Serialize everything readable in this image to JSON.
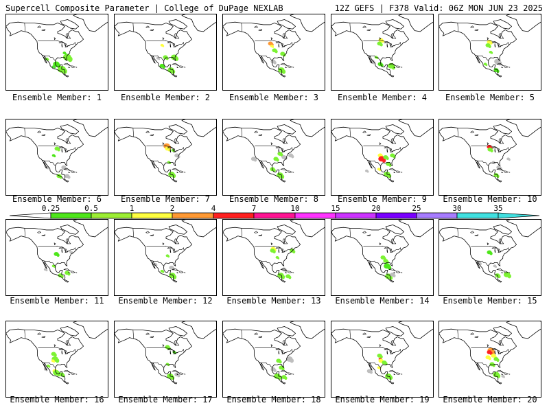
{
  "header": {
    "left": "Supercell Composite Parameter | College of DuPage NEXLAB",
    "right": "12Z GEFS | F378 Valid: 06Z MON JUN 23 2025"
  },
  "panels": [
    {
      "label": "Ensemble Member: 1",
      "blobs": [
        [
          -80,
          30,
          5,
          "#7cf233"
        ],
        [
          -96,
          22,
          4,
          "#4ee61a"
        ],
        [
          -88,
          16,
          5,
          "#7cf233"
        ],
        [
          -100,
          19,
          2,
          "#50e030"
        ],
        [
          -110,
          28,
          2,
          "#7cf233"
        ],
        [
          -84,
          35,
          2,
          "#4ee61a"
        ]
      ]
    },
    {
      "label": "Ensemble Member: 2",
      "blobs": [
        [
          -100,
          44,
          2,
          "#ffff40"
        ],
        [
          -95,
          30,
          3,
          "#7cf233"
        ],
        [
          -82,
          30,
          4,
          "#7cf233"
        ],
        [
          -100,
          20,
          3,
          "#4ee61a"
        ],
        [
          -87,
          15,
          4,
          "#7cf233"
        ],
        [
          -106,
          29,
          2,
          "#bebebe"
        ]
      ]
    },
    {
      "label": "Ensemble Member: 3",
      "blobs": [
        [
          -100,
          46,
          3,
          "#ff9933"
        ],
        [
          -98,
          43,
          2,
          "#ffff40"
        ],
        [
          -94,
          38,
          3,
          "#7cf233"
        ],
        [
          -82,
          34,
          3,
          "#7cf233"
        ],
        [
          -96,
          25,
          3,
          "#bebebe"
        ],
        [
          -84,
          15,
          4,
          "#7cf233"
        ]
      ]
    },
    {
      "label": "Ensemble Member: 4",
      "blobs": [
        [
          -97,
          50,
          3,
          "#ffff40"
        ],
        [
          -99,
          46,
          3,
          "#7cf233"
        ],
        [
          -104,
          30,
          2,
          "#7cf233"
        ],
        [
          -98,
          22,
          3,
          "#4ee61a"
        ],
        [
          -82,
          20,
          4,
          "#7cf233"
        ],
        [
          -110,
          25,
          3,
          "#bebebe"
        ]
      ]
    },
    {
      "label": "Ensemble Member: 5",
      "blobs": [
        [
          -96,
          48,
          3,
          "#ffff40"
        ],
        [
          -98,
          44,
          3,
          "#7cf233"
        ],
        [
          -94,
          36,
          2,
          "#7cf233"
        ],
        [
          -84,
          25,
          4,
          "#bebebe"
        ],
        [
          -86,
          15,
          3,
          "#4ee61a"
        ],
        [
          -102,
          22,
          2,
          "#7cf233"
        ]
      ]
    },
    {
      "label": "Ensemble Member: 6",
      "blobs": [
        [
          -95,
          46,
          3,
          "#7cf233"
        ],
        [
          -100,
          38,
          2,
          "#4ee61a"
        ],
        [
          -85,
          24,
          3,
          "#bebebe"
        ],
        [
          -92,
          14,
          3,
          "#7cf233"
        ],
        [
          -80,
          14,
          3,
          "#bebebe"
        ],
        [
          -110,
          24,
          2,
          "#bebebe"
        ]
      ]
    },
    {
      "label": "Ensemble Member: 7",
      "blobs": [
        [
          -93,
          49,
          4,
          "#ff9933"
        ],
        [
          -92,
          46,
          3,
          "#ffff40"
        ],
        [
          -84,
          44,
          2,
          "#7cf233"
        ],
        [
          -90,
          30,
          2,
          "#7cf233"
        ],
        [
          -86,
          16,
          4,
          "#7cf233"
        ],
        [
          -78,
          38,
          3,
          "#bebebe"
        ]
      ]
    },
    {
      "label": "Ensemble Member: 8",
      "blobs": [
        [
          -86,
          40,
          3,
          "#7cf233"
        ],
        [
          -92,
          34,
          3,
          "#7cf233"
        ],
        [
          -80,
          36,
          3,
          "#bebebe"
        ],
        [
          -97,
          22,
          3,
          "#7cf233"
        ],
        [
          -86,
          15,
          4,
          "#7cf233"
        ],
        [
          -70,
          38,
          3,
          "#bebebe"
        ],
        [
          -125,
          34,
          3,
          "#bebebe"
        ]
      ]
    },
    {
      "label": "Ensemble Member: 9",
      "blobs": [
        [
          -98,
          38,
          3,
          "#ffff40"
        ],
        [
          -96,
          34,
          4,
          "#ff2020"
        ],
        [
          -90,
          36,
          3,
          "#7cf233"
        ],
        [
          -80,
          38,
          3,
          "#7cf233"
        ],
        [
          -86,
          28,
          3,
          "#7cf233"
        ],
        [
          -100,
          22,
          2,
          "#ffff40"
        ],
        [
          -88,
          16,
          4,
          "#7cf233"
        ],
        [
          -118,
          20,
          2,
          "#bebebe"
        ]
      ]
    },
    {
      "label": "Ensemble Member: 10",
      "blobs": [
        [
          -96,
          48,
          3,
          "#ff2020"
        ],
        [
          -95,
          45,
          3,
          "#7cf233"
        ],
        [
          -90,
          30,
          2,
          "#bebebe"
        ],
        [
          -82,
          24,
          3,
          "#bebebe"
        ],
        [
          -86,
          15,
          3,
          "#7cf233"
        ],
        [
          -68,
          34,
          2,
          "#bebebe"
        ]
      ]
    },
    {
      "label": "Ensemble Member: 11",
      "blobs": [
        [
          -96,
          40,
          3,
          "#4ee61a"
        ],
        [
          -100,
          26,
          2,
          "#7cf233"
        ],
        [
          -90,
          15,
          3,
          "#7cf233"
        ],
        [
          -80,
          18,
          3,
          "#7cf233"
        ],
        [
          -74,
          42,
          2,
          "#bebebe"
        ],
        [
          -112,
          22,
          2,
          "#bebebe"
        ]
      ]
    },
    {
      "label": "Ensemble Member: 12",
      "blobs": [
        [
          -92,
          38,
          2,
          "#7cf233"
        ],
        [
          -86,
          24,
          3,
          "#bebebe"
        ],
        [
          -85,
          15,
          4,
          "#7cf233"
        ],
        [
          -100,
          20,
          2,
          "#7cf233"
        ],
        [
          -110,
          28,
          2,
          "#bebebe"
        ]
      ]
    },
    {
      "label": "Ensemble Member: 13",
      "blobs": [
        [
          -96,
          46,
          3,
          "#ffff40"
        ],
        [
          -97,
          44,
          3,
          "#7cf233"
        ],
        [
          -90,
          36,
          2,
          "#7cf233"
        ],
        [
          -68,
          44,
          3,
          "#7cf233"
        ],
        [
          -80,
          22,
          3,
          "#bebebe"
        ],
        [
          -85,
          15,
          4,
          "#7cf233"
        ],
        [
          -74,
          14,
          3,
          "#7cf233"
        ]
      ]
    },
    {
      "label": "Ensemble Member: 14",
      "blobs": [
        [
          -94,
          36,
          3,
          "#7cf233"
        ],
        [
          -90,
          32,
          3,
          "#7cf233"
        ],
        [
          -88,
          26,
          4,
          "#4ee61a"
        ],
        [
          -86,
          14,
          4,
          "#7cf233"
        ],
        [
          -80,
          16,
          3,
          "#bebebe"
        ]
      ]
    },
    {
      "label": "Ensemble Member: 15",
      "blobs": [
        [
          -96,
          42,
          3,
          "#4ee61a"
        ],
        [
          -88,
          26,
          2,
          "#bebebe"
        ],
        [
          -84,
          15,
          3,
          "#7cf233"
        ],
        [
          -70,
          16,
          4,
          "#7cf233"
        ],
        [
          -112,
          30,
          3,
          "#bebebe"
        ]
      ]
    },
    {
      "label": "Ensemble Member: 16",
      "blobs": [
        [
          -100,
          42,
          3,
          "#7cf233"
        ],
        [
          -98,
          36,
          4,
          "#7cf233"
        ],
        [
          -101,
          34,
          2,
          "#ffff40"
        ],
        [
          -108,
          28,
          2,
          "#7cf233"
        ],
        [
          -98,
          22,
          3,
          "#ffff40"
        ],
        [
          -96,
          20,
          4,
          "#7cf233"
        ],
        [
          -88,
          18,
          3,
          "#7cf233"
        ],
        [
          -112,
          24,
          2,
          "#bebebe"
        ]
      ]
    },
    {
      "label": "Ensemble Member: 17",
      "blobs": [
        [
          -92,
          50,
          3,
          "#7cf233"
        ],
        [
          -82,
          44,
          2,
          "#4ee61a"
        ],
        [
          -92,
          30,
          2,
          "#7cf233"
        ],
        [
          -88,
          16,
          4,
          "#7cf233"
        ],
        [
          -78,
          18,
          3,
          "#bebebe"
        ]
      ]
    },
    {
      "label": "Ensemble Member: 18",
      "blobs": [
        [
          -88,
          34,
          3,
          "#7cf233"
        ],
        [
          -84,
          26,
          3,
          "#7cf233"
        ],
        [
          -90,
          16,
          4,
          "#7cf233"
        ],
        [
          -80,
          15,
          3,
          "#7cf233"
        ],
        [
          -72,
          36,
          4,
          "#bebebe"
        ],
        [
          -96,
          24,
          3,
          "#bebebe"
        ]
      ]
    },
    {
      "label": "Ensemble Member: 19",
      "blobs": [
        [
          -99,
          40,
          3,
          "#7cf233"
        ],
        [
          -98,
          36,
          2,
          "#ff2020"
        ],
        [
          -97,
          34,
          3,
          "#ffff40"
        ],
        [
          -92,
          32,
          3,
          "#7cf233"
        ],
        [
          -100,
          26,
          2,
          "#ffff40"
        ],
        [
          -86,
          16,
          4,
          "#7cf233"
        ],
        [
          -114,
          22,
          3,
          "#bebebe"
        ]
      ]
    },
    {
      "label": "Ensemble Member: 20",
      "blobs": [
        [
          -94,
          46,
          4,
          "#ff9933"
        ],
        [
          -96,
          44,
          3,
          "#ff2020"
        ],
        [
          -90,
          40,
          3,
          "#ffff40"
        ],
        [
          -86,
          36,
          3,
          "#7cf233"
        ],
        [
          -98,
          38,
          3,
          "#ffff40"
        ],
        [
          -92,
          30,
          3,
          "#7cf233"
        ],
        [
          -86,
          18,
          4,
          "#7cf233"
        ],
        [
          -76,
          16,
          2,
          "#bebebe"
        ]
      ]
    }
  ],
  "colorbar": {
    "ticks": [
      "0.25",
      "0.5",
      "1",
      "2",
      "4",
      "7",
      "10",
      "15",
      "20",
      "25",
      "30",
      "35"
    ],
    "colors": [
      "#bebebe",
      "#4ee61a",
      "#9cee33",
      "#ffff40",
      "#ff9933",
      "#ff2020",
      "#ff1493",
      "#ff33ff",
      "#cc33ff",
      "#7a00ff",
      "#a77cff",
      "#40e0e0"
    ]
  }
}
